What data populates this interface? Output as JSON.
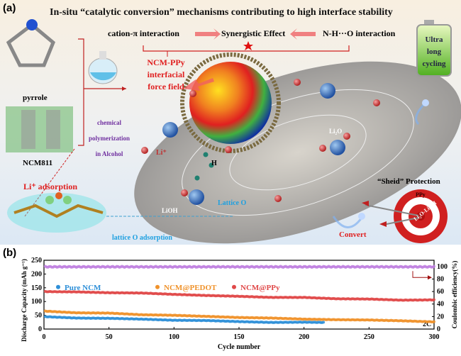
{
  "panel_a": {
    "label": "(a)",
    "title": "In-situ “catalytic conversion” mechanisms contributing to high interface stability",
    "cation_pi": "cation-π interaction",
    "synergistic": "Synergistic Effect",
    "nho": "N-H···O interaction",
    "force_field": [
      "NCM-PPy",
      "interfacial",
      "force field"
    ],
    "pyrrole": "pyrrole",
    "polymerization": [
      "chemical",
      "polymerization",
      "in Alcohol"
    ],
    "ncm811": "NCM811",
    "li_adsorption": "Li⁺ adsorption",
    "lattice_o_adsorption": "lattice O adsorption",
    "battery": [
      "Ultra",
      "long",
      "cycling"
    ],
    "li2o": "Li₂O",
    "li_plus": "Li⁺",
    "h": "H",
    "lioh": "LiOH",
    "lattice_o": "Lattice O",
    "shield": "“Sheid” Protection",
    "ppy": "PPy",
    "target_text": "Li₂O-LiOH",
    "convert": "Convert",
    "colors": {
      "red": "#e02020",
      "purple": "#7030a0",
      "blue": "#1ea0e0"
    }
  },
  "chart_data": {
    "type": "scatter",
    "panel_label": "(b)",
    "xlabel": "Cycle number",
    "ylabel": "Discharge Capacity (mAh g⁻¹)",
    "y2label": "Coulombic efficiency(%)",
    "xlim": [
      0,
      300
    ],
    "ylim": [
      0,
      250
    ],
    "y2lim": [
      0,
      110
    ],
    "xticks": [
      0,
      50,
      100,
      150,
      200,
      250,
      300
    ],
    "yticks": [
      0,
      50,
      100,
      150,
      200,
      250
    ],
    "y2ticks": [
      0,
      20,
      40,
      60,
      80,
      100
    ],
    "annotation": "2C",
    "series": [
      {
        "name": "Pure NCM",
        "color": "#2e8fd8",
        "x": [
          1,
          25,
          50,
          75,
          100,
          125,
          150,
          175,
          200,
          215
        ],
        "values": [
          45,
          40,
          39,
          36,
          32,
          31,
          27,
          24,
          25,
          24
        ]
      },
      {
        "name": "NCM@PEDOT",
        "color": "#f0922a",
        "x": [
          1,
          25,
          50,
          75,
          100,
          125,
          150,
          175,
          200,
          225,
          250,
          275,
          300
        ],
        "values": [
          65,
          59,
          58,
          52,
          50,
          46,
          42,
          40,
          36,
          34,
          33,
          30,
          26
        ]
      },
      {
        "name": "NCM@PPy",
        "color": "#e04848",
        "x": [
          1,
          25,
          50,
          75,
          100,
          125,
          150,
          175,
          200,
          225,
          250,
          275,
          300
        ],
        "values": [
          136,
          135,
          132,
          131,
          126,
          122,
          119,
          115,
          115,
          110,
          109,
          105,
          106
        ]
      },
      {
        "name": "Coulombic efficiency",
        "axis": "right",
        "color": "#c080e0",
        "x": [
          1,
          300
        ],
        "values": [
          99.5,
          99.5
        ]
      }
    ]
  }
}
